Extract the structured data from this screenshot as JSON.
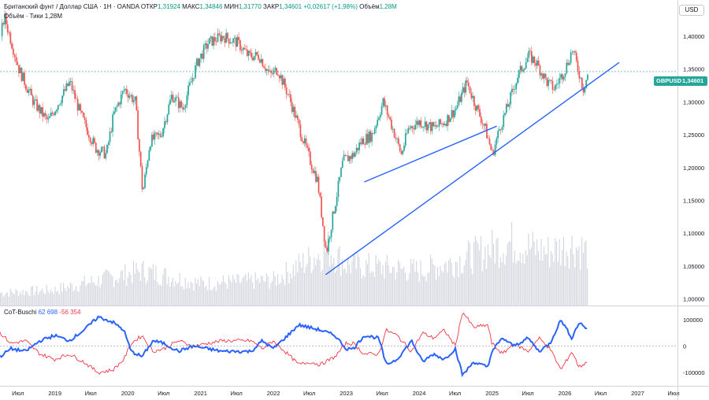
{
  "header": {
    "symbol": "Британский фунт / Доллар США · 1Н · OANDA",
    "open_label": "ОТКР",
    "open": "1,31924",
    "high_label": "МАКС",
    "high": "1,34846",
    "low_label": "МИН",
    "low": "1,31770",
    "close_label": "ЗАКР",
    "close": "1,34601",
    "change": "+0,02617 (+1,98%)",
    "volume_label": "Объём",
    "volume": "1,28M",
    "volume_line": "Объём · Тики  1,28M"
  },
  "currency_label": "USD",
  "price_tag": {
    "ticker": "GBPUSD",
    "value": "1,34601"
  },
  "indicator": {
    "name": "CoT-Buschi",
    "value1": "62 698",
    "value2": "-56 354"
  },
  "colors": {
    "up": "#26a69a",
    "down": "#ef5350",
    "volume": "#d1d4dc",
    "trend": "#2962ff",
    "cot_blue": "#2962ff",
    "cot_red": "#f23645"
  },
  "chart_data": {
    "type": "candlestick",
    "title": "Британский фунт / Доллар США · 1Н · OANDA",
    "ylim": [
      0.99,
      1.455
    ],
    "y_ticks": [
      "1,40000",
      "1,35000",
      "1,30000",
      "1,25000",
      "1,20000",
      "1,15000",
      "1,10000",
      "1,05000",
      "1,00000"
    ],
    "y_values": [
      1.4,
      1.35,
      1.3,
      1.25,
      1.2,
      1.15,
      1.1,
      1.05,
      1.0
    ],
    "x_ticks": [
      "Июл",
      "2019",
      "Июл",
      "2020",
      "Июл",
      "2021",
      "Июл",
      "2022",
      "Июл",
      "2023",
      "Июл",
      "2024",
      "Июл",
      "2025",
      "Июл",
      "2026",
      "Июл",
      "2027",
      "Июл"
    ],
    "x_start": 2018.25,
    "x_end": 2027.55,
    "price_path": [
      [
        2018.25,
        1.4
      ],
      [
        2018.3,
        1.43
      ],
      [
        2018.5,
        1.35
      ],
      [
        2018.7,
        1.3
      ],
      [
        2018.9,
        1.27
      ],
      [
        2019.1,
        1.31
      ],
      [
        2019.2,
        1.33
      ],
      [
        2019.35,
        1.28
      ],
      [
        2019.55,
        1.23
      ],
      [
        2019.7,
        1.22
      ],
      [
        2019.8,
        1.28
      ],
      [
        2019.95,
        1.32
      ],
      [
        2020.1,
        1.3
      ],
      [
        2020.2,
        1.16
      ],
      [
        2020.3,
        1.24
      ],
      [
        2020.45,
        1.25
      ],
      [
        2020.6,
        1.31
      ],
      [
        2020.75,
        1.29
      ],
      [
        2020.95,
        1.36
      ],
      [
        2021.1,
        1.39
      ],
      [
        2021.3,
        1.4
      ],
      [
        2021.5,
        1.39
      ],
      [
        2021.65,
        1.37
      ],
      [
        2021.8,
        1.37
      ],
      [
        2021.95,
        1.34
      ],
      [
        2022.05,
        1.35
      ],
      [
        2022.2,
        1.31
      ],
      [
        2022.35,
        1.26
      ],
      [
        2022.5,
        1.21
      ],
      [
        2022.6,
        1.18
      ],
      [
        2022.72,
        1.07
      ],
      [
        2022.8,
        1.12
      ],
      [
        2022.95,
        1.21
      ],
      [
        2023.1,
        1.22
      ],
      [
        2023.2,
        1.24
      ],
      [
        2023.35,
        1.25
      ],
      [
        2023.5,
        1.3
      ],
      [
        2023.6,
        1.27
      ],
      [
        2023.75,
        1.22
      ],
      [
        2023.85,
        1.26
      ],
      [
        2024.0,
        1.27
      ],
      [
        2024.2,
        1.26
      ],
      [
        2024.35,
        1.27
      ],
      [
        2024.5,
        1.29
      ],
      [
        2024.65,
        1.33
      ],
      [
        2024.75,
        1.3
      ],
      [
        2024.9,
        1.26
      ],
      [
        2025.0,
        1.22
      ],
      [
        2025.1,
        1.26
      ],
      [
        2025.2,
        1.29
      ],
      [
        2025.35,
        1.34
      ],
      [
        2025.5,
        1.37
      ],
      [
        2025.6,
        1.36
      ],
      [
        2025.75,
        1.33
      ],
      [
        2025.85,
        1.32
      ],
      [
        2026.0,
        1.35
      ],
      [
        2026.1,
        1.38
      ],
      [
        2026.2,
        1.34
      ],
      [
        2026.25,
        1.32
      ],
      [
        2026.32,
        1.346
      ]
    ],
    "volume_path": [
      [
        2018.25,
        0.2
      ],
      [
        2019.0,
        0.25
      ],
      [
        2020.2,
        0.55
      ],
      [
        2021.0,
        0.35
      ],
      [
        2022.0,
        0.4
      ],
      [
        2022.6,
        0.8
      ],
      [
        2022.75,
        0.9
      ],
      [
        2023.0,
        0.65
      ],
      [
        2024.0,
        0.55
      ],
      [
        2024.5,
        0.7
      ],
      [
        2025.0,
        0.9
      ],
      [
        2025.25,
        1.0
      ],
      [
        2025.75,
        0.85
      ],
      [
        2026.1,
        0.95
      ],
      [
        2026.32,
        0.85
      ]
    ],
    "trendlines": [
      {
        "x1": 2022.72,
        "y1": 1.037,
        "x2": 2026.75,
        "y2": 1.36
      },
      {
        "x1": 2023.25,
        "y1": 1.178,
        "x2": 2025.07,
        "y2": 1.263
      }
    ],
    "last_price": 1.34601,
    "indicator": {
      "name": "CoT-Buschi",
      "ylim": [
        -150000,
        150000
      ],
      "y_ticks": [
        "100000",
        "0",
        "-100000"
      ],
      "y_values": [
        100000,
        0,
        -100000
      ],
      "blue": [
        [
          2018.25,
          -40000
        ],
        [
          2018.4,
          -10000
        ],
        [
          2018.6,
          -20000
        ],
        [
          2018.8,
          20000
        ],
        [
          2019.0,
          40000
        ],
        [
          2019.2,
          20000
        ],
        [
          2019.4,
          60000
        ],
        [
          2019.6,
          110000
        ],
        [
          2019.8,
          90000
        ],
        [
          2019.95,
          60000
        ],
        [
          2020.05,
          -20000
        ],
        [
          2020.2,
          -40000
        ],
        [
          2020.35,
          20000
        ],
        [
          2020.5,
          10000
        ],
        [
          2020.7,
          -20000
        ],
        [
          2020.9,
          0
        ],
        [
          2021.1,
          -10000
        ],
        [
          2021.3,
          -20000
        ],
        [
          2021.5,
          -20000
        ],
        [
          2021.7,
          -20000
        ],
        [
          2021.85,
          20000
        ],
        [
          2022.0,
          -10000
        ],
        [
          2022.2,
          40000
        ],
        [
          2022.35,
          80000
        ],
        [
          2022.5,
          70000
        ],
        [
          2022.65,
          60000
        ],
        [
          2022.85,
          40000
        ],
        [
          2023.0,
          -10000
        ],
        [
          2023.1,
          -10000
        ],
        [
          2023.25,
          40000
        ],
        [
          2023.45,
          30000
        ],
        [
          2023.55,
          -70000
        ],
        [
          2023.7,
          -50000
        ],
        [
          2023.9,
          20000
        ],
        [
          2024.05,
          -60000
        ],
        [
          2024.2,
          -30000
        ],
        [
          2024.35,
          -50000
        ],
        [
          2024.5,
          -10000
        ],
        [
          2024.6,
          -110000
        ],
        [
          2024.75,
          -60000
        ],
        [
          2024.95,
          -80000
        ],
        [
          2025.0,
          -20000
        ],
        [
          2025.15,
          30000
        ],
        [
          2025.3,
          0
        ],
        [
          2025.5,
          30000
        ],
        [
          2025.65,
          -20000
        ],
        [
          2025.8,
          10000
        ],
        [
          2025.95,
          100000
        ],
        [
          2026.1,
          30000
        ],
        [
          2026.2,
          90000
        ],
        [
          2026.32,
          62698
        ]
      ],
      "red": [
        [
          2018.25,
          50000
        ],
        [
          2018.4,
          10000
        ],
        [
          2018.6,
          20000
        ],
        [
          2018.8,
          -30000
        ],
        [
          2019.0,
          -50000
        ],
        [
          2019.2,
          -30000
        ],
        [
          2019.4,
          -60000
        ],
        [
          2019.6,
          -100000
        ],
        [
          2019.8,
          -90000
        ],
        [
          2019.95,
          -50000
        ],
        [
          2020.05,
          10000
        ],
        [
          2020.2,
          40000
        ],
        [
          2020.35,
          -20000
        ],
        [
          2020.5,
          -10000
        ],
        [
          2020.7,
          20000
        ],
        [
          2020.9,
          0
        ],
        [
          2021.1,
          10000
        ],
        [
          2021.3,
          20000
        ],
        [
          2021.5,
          20000
        ],
        [
          2021.7,
          20000
        ],
        [
          2021.85,
          -10000
        ],
        [
          2022.0,
          20000
        ],
        [
          2022.2,
          -30000
        ],
        [
          2022.35,
          -70000
        ],
        [
          2022.5,
          -60000
        ],
        [
          2022.65,
          -70000
        ],
        [
          2022.85,
          -40000
        ],
        [
          2023.0,
          10000
        ],
        [
          2023.1,
          10000
        ],
        [
          2023.25,
          -30000
        ],
        [
          2023.45,
          -30000
        ],
        [
          2023.55,
          60000
        ],
        [
          2023.7,
          40000
        ],
        [
          2023.9,
          -20000
        ],
        [
          2024.05,
          50000
        ],
        [
          2024.2,
          30000
        ],
        [
          2024.35,
          60000
        ],
        [
          2024.5,
          0
        ],
        [
          2024.6,
          130000
        ],
        [
          2024.75,
          70000
        ],
        [
          2024.95,
          80000
        ],
        [
          2025.0,
          10000
        ],
        [
          2025.15,
          -30000
        ],
        [
          2025.3,
          10000
        ],
        [
          2025.5,
          -20000
        ],
        [
          2025.65,
          30000
        ],
        [
          2025.8,
          -10000
        ],
        [
          2025.95,
          -90000
        ],
        [
          2026.1,
          -20000
        ],
        [
          2026.2,
          -80000
        ],
        [
          2026.32,
          -56354
        ]
      ]
    }
  }
}
